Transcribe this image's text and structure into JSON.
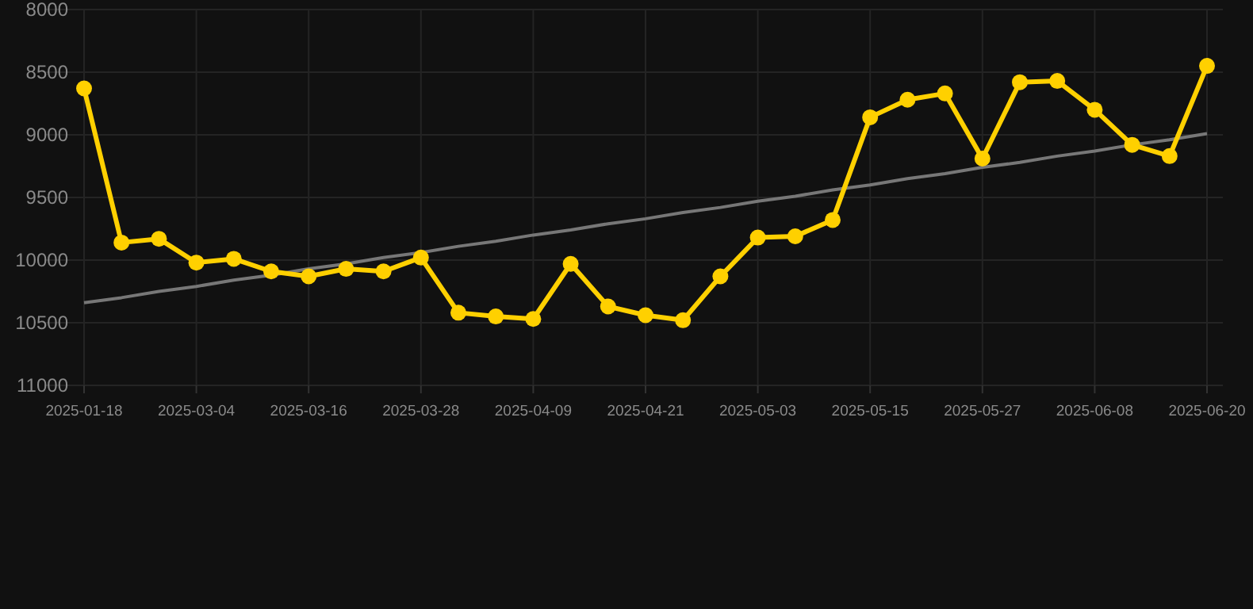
{
  "chart_data": {
    "type": "line",
    "categories": [
      "2025-01-18",
      null,
      null,
      "2025-03-04",
      null,
      null,
      "2025-03-16",
      null,
      null,
      "2025-03-28",
      null,
      null,
      "2025-04-09",
      null,
      null,
      "2025-04-21",
      null,
      null,
      "2025-05-03",
      null,
      null,
      "2025-05-15",
      null,
      null,
      "2025-05-27",
      null,
      null,
      "2025-06-08",
      null,
      null,
      "2025-06-20"
    ],
    "series": [
      {
        "color": "#ffd000",
        "marker": "circle",
        "values": [
          8630,
          9860,
          9830,
          10020,
          9990,
          10090,
          10130,
          10070,
          10090,
          9980,
          10420,
          10450,
          10470,
          10030,
          10370,
          10440,
          10480,
          10130,
          9820,
          9810,
          9680,
          8860,
          8720,
          8670,
          9190,
          8580,
          8570,
          8800,
          9080,
          9170,
          8450
        ]
      },
      {
        "color": "#777777",
        "marker": "none",
        "values": [
          10340,
          10300,
          10250,
          10210,
          10160,
          10120,
          10070,
          10030,
          9980,
          9940,
          9890,
          9850,
          9800,
          9760,
          9710,
          9670,
          9620,
          9580,
          9530,
          9490,
          9440,
          9400,
          9350,
          9310,
          9260,
          9220,
          9170,
          9130,
          9080,
          9040,
          8990
        ]
      }
    ],
    "ylim": [
      11000,
      8000
    ],
    "yticks": [
      8000,
      8500,
      9000,
      9500,
      10000,
      10500,
      11000
    ],
    "grid": true
  }
}
